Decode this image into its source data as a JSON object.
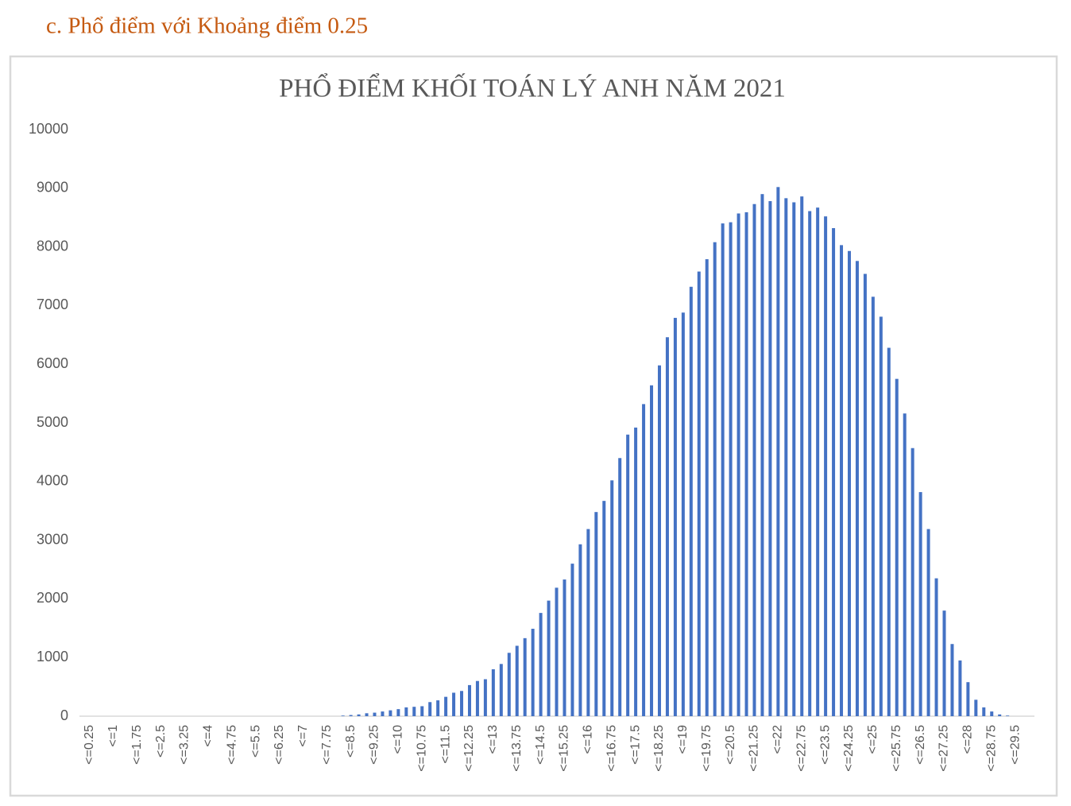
{
  "heading": "c.   Phổ điểm với Khoảng điểm 0.25",
  "chart_data": {
    "type": "bar",
    "title": "PHỔ ĐIỂM KHỐI  TOÁN  LÝ ANH   NĂM 2021",
    "categories": [
      "<=0.25",
      null,
      null,
      "<=1",
      null,
      null,
      "<=1.75",
      null,
      null,
      "<=2.5",
      null,
      null,
      "<=3.25",
      null,
      null,
      "<=4",
      null,
      null,
      "<=4.75",
      null,
      null,
      "<=5.5",
      null,
      null,
      "<=6.25",
      null,
      null,
      "<=7",
      null,
      null,
      "<=7.75",
      null,
      null,
      "<=8.5",
      null,
      null,
      "<=9.25",
      null,
      null,
      "<=10",
      null,
      null,
      "<=10.75",
      null,
      null,
      "<=11.5",
      null,
      null,
      "<=12.25",
      null,
      null,
      "<=13",
      null,
      null,
      "<=13.75",
      null,
      null,
      "<=14.5",
      null,
      null,
      "<=15.25",
      null,
      null,
      "<=16",
      null,
      null,
      "<=16.75",
      null,
      null,
      "<=17.5",
      null,
      null,
      "<=18.25",
      null,
      null,
      "<=19",
      null,
      null,
      "<=19.75",
      null,
      null,
      "<=20.5",
      null,
      null,
      "<=21.25",
      null,
      null,
      "<=22",
      null,
      null,
      "<=22.75",
      null,
      null,
      "<=23.5",
      null,
      null,
      "<=24.25",
      null,
      null,
      "<=25",
      null,
      null,
      "<=25.75",
      null,
      null,
      "<=26.5",
      null,
      null,
      "<=27.25",
      null,
      null,
      "<=28",
      null,
      null,
      "<=28.75",
      null,
      null,
      "<=29.5",
      null,
      null
    ],
    "values": [
      0,
      0,
      0,
      0,
      0,
      0,
      0,
      0,
      0,
      0,
      0,
      0,
      0,
      0,
      0,
      0,
      0,
      0,
      0,
      0,
      0,
      0,
      0,
      0,
      0,
      0,
      0,
      0,
      0,
      0,
      0,
      0,
      10,
      20,
      30,
      50,
      60,
      80,
      100,
      120,
      150,
      160,
      170,
      240,
      270,
      330,
      400,
      430,
      530,
      600,
      630,
      800,
      890,
      1080,
      1200,
      1330,
      1490,
      1760,
      1970,
      2190,
      2330,
      2600,
      2930,
      3190,
      3480,
      3670,
      4020,
      4400,
      4800,
      4920,
      5320,
      5640,
      5980,
      6460,
      6790,
      6880,
      7320,
      7580,
      7790,
      8080,
      8400,
      8420,
      8570,
      8590,
      8730,
      8900,
      8780,
      9020,
      8830,
      8760,
      8860,
      8610,
      8670,
      8520,
      8320,
      8030,
      7930,
      7760,
      7540,
      7150,
      6810,
      6280,
      5750,
      5160,
      4570,
      3820,
      3190,
      2350,
      1800,
      1230,
      950,
      580,
      280,
      150,
      80,
      30,
      10,
      0,
      0,
      0
    ],
    "color": "#4472c4",
    "ylim": [
      0,
      10000
    ],
    "yticks": [
      0,
      1000,
      2000,
      3000,
      4000,
      5000,
      6000,
      7000,
      8000,
      9000,
      10000
    ],
    "grid": false
  }
}
